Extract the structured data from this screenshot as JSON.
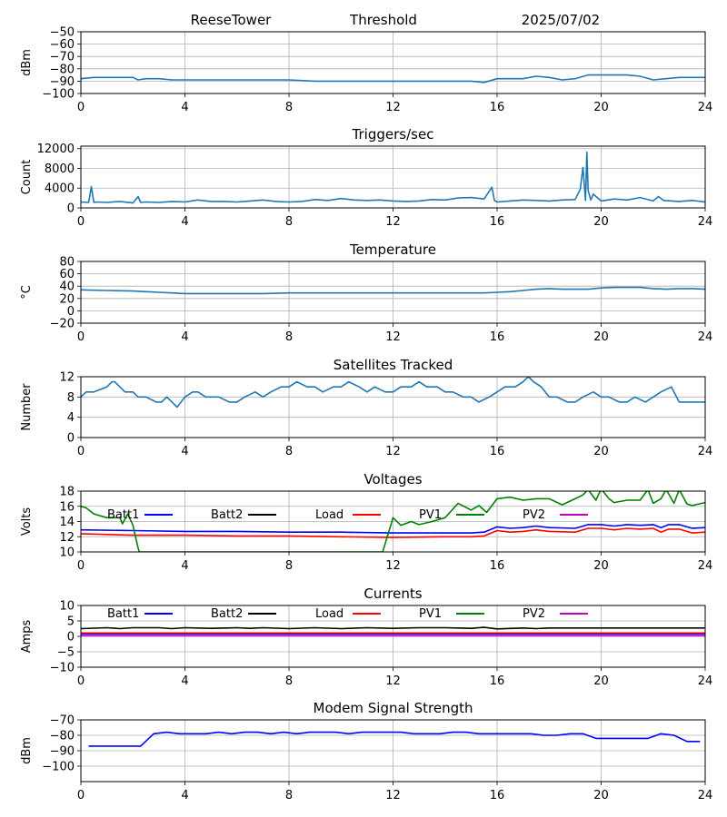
{
  "header": {
    "station": "ReeseTower",
    "mode": "Threshold",
    "date": "2025/07/02"
  },
  "chart_data": [
    {
      "type": "line",
      "title": "",
      "xlabel": "",
      "ylabel": "dBm",
      "xlim": [
        0,
        24
      ],
      "ylim": [
        -100,
        -50
      ],
      "xticks": [
        "0",
        "4",
        "8",
        "12",
        "16",
        "20",
        "24"
      ],
      "yticks": [
        "−100",
        "−90",
        "−80",
        "−70",
        "−60",
        "−50"
      ],
      "grid": true,
      "series": [
        {
          "color": "#1f77b4",
          "x": [
            0,
            0.5,
            1,
            1.5,
            2,
            2.2,
            2.5,
            3,
            3.5,
            4,
            5,
            6,
            7,
            8,
            9,
            10,
            11,
            12,
            13,
            14,
            15,
            15.5,
            16,
            17,
            17.5,
            18,
            18.5,
            19,
            19.5,
            20,
            21,
            21.5,
            22,
            23,
            24
          ],
          "y": [
            -88,
            -87,
            -87,
            -87,
            -87,
            -89,
            -88,
            -88,
            -89,
            -89,
            -89,
            -89,
            -89,
            -89,
            -90,
            -90,
            -90,
            -90,
            -90,
            -90,
            -90,
            -91,
            -88,
            -88,
            -86,
            -87,
            -89,
            -88,
            -85,
            -85,
            -85,
            -86,
            -89,
            -87,
            -87
          ]
        }
      ]
    },
    {
      "type": "line",
      "title": "Triggers/sec",
      "xlabel": "",
      "ylabel": "Count",
      "xlim": [
        0,
        24
      ],
      "ylim": [
        0,
        12500
      ],
      "xticks": [
        "0",
        "4",
        "8",
        "12",
        "16",
        "20",
        "24"
      ],
      "yticks": [
        "0",
        "4000",
        "8000",
        "12000"
      ],
      "grid": true,
      "series": [
        {
          "color": "#1f77b4",
          "x": [
            0,
            0.3,
            0.4,
            0.5,
            0.6,
            1,
            1.5,
            2,
            2.2,
            2.3,
            2.5,
            3,
            3.5,
            4,
            4.5,
            5,
            5.5,
            6,
            6.5,
            7,
            7.5,
            8,
            8.5,
            9,
            9.5,
            10,
            10.5,
            11,
            11.5,
            12,
            12.5,
            13,
            13.5,
            14,
            14.5,
            15,
            15.5,
            15.8,
            15.9,
            16,
            16.5,
            17,
            17.5,
            18,
            18.5,
            19,
            19.2,
            19.3,
            19.4,
            19.45,
            19.5,
            19.6,
            19.7,
            20,
            20.5,
            21,
            21.5,
            22,
            22.2,
            22.4,
            23,
            23.5,
            24
          ],
          "y": [
            1200,
            1100,
            4300,
            1100,
            1200,
            1100,
            1300,
            1000,
            2300,
            1100,
            1200,
            1100,
            1300,
            1200,
            1600,
            1300,
            1300,
            1200,
            1400,
            1600,
            1300,
            1200,
            1300,
            1700,
            1500,
            1900,
            1600,
            1500,
            1600,
            1400,
            1300,
            1400,
            1700,
            1600,
            2000,
            2100,
            1800,
            4200,
            1500,
            1200,
            1400,
            1600,
            1500,
            1400,
            1600,
            1700,
            3800,
            8200,
            1500,
            11300,
            3500,
            1600,
            2800,
            1400,
            1800,
            1600,
            2100,
            1400,
            2300,
            1500,
            1300,
            1500,
            1200
          ]
        }
      ]
    },
    {
      "type": "line",
      "title": "Temperature",
      "xlabel": "",
      "ylabel": "°C",
      "xlim": [
        0,
        24
      ],
      "ylim": [
        -20,
        80
      ],
      "xticks": [
        "0",
        "4",
        "8",
        "12",
        "16",
        "20",
        "24"
      ],
      "yticks": [
        "−20",
        "0",
        "20",
        "40",
        "60",
        "80"
      ],
      "grid": true,
      "series": [
        {
          "color": "#1f77b4",
          "x": [
            0,
            1,
            2,
            2.5,
            3,
            3.5,
            4,
            5,
            6,
            7,
            8,
            8.5,
            9,
            10,
            11,
            12,
            13,
            14,
            15,
            15.5,
            16,
            16.5,
            17,
            17.5,
            18,
            18.5,
            19,
            19.5,
            20,
            20.5,
            21,
            21.5,
            22,
            22.5,
            23,
            23.5,
            24
          ],
          "y": [
            34,
            33,
            32,
            31,
            30,
            29,
            28,
            28,
            28,
            28,
            29,
            29,
            29,
            29,
            29,
            29,
            29,
            29,
            29,
            29,
            30,
            31,
            33,
            35,
            36,
            35,
            35,
            35,
            37,
            38,
            38,
            38,
            36,
            35,
            36,
            36,
            35
          ]
        }
      ]
    },
    {
      "type": "line",
      "title": "Satellites Tracked",
      "xlabel": "",
      "ylabel": "Number",
      "xlim": [
        0,
        24
      ],
      "ylim": [
        0,
        12
      ],
      "xticks": [
        "0",
        "4",
        "8",
        "12",
        "16",
        "20",
        "24"
      ],
      "yticks": [
        "0",
        "4",
        "8",
        "12"
      ],
      "grid": true,
      "series": [
        {
          "color": "#1f77b4",
          "x": [
            0,
            0.2,
            0.5,
            1,
            1.2,
            1.3,
            1.5,
            1.7,
            2,
            2.2,
            2.5,
            2.9,
            3.1,
            3.3,
            3.5,
            3.7,
            4,
            4.3,
            4.5,
            4.8,
            5,
            5.3,
            5.7,
            6,
            6.3,
            6.7,
            7,
            7.3,
            7.7,
            8,
            8.3,
            8.7,
            9,
            9.3,
            9.7,
            10,
            10.3,
            10.7,
            11,
            11.3,
            11.7,
            12,
            12.3,
            12.7,
            13,
            13.3,
            13.7,
            14,
            14.3,
            14.7,
            15,
            15.3,
            15.7,
            16,
            16.3,
            16.7,
            17,
            17.2,
            17.4,
            17.7,
            18,
            18.3,
            18.7,
            19,
            19.3,
            19.7,
            20,
            20.3,
            20.7,
            21,
            21.3,
            21.7,
            22,
            22.3,
            22.7,
            23,
            23.3,
            23.7,
            24
          ],
          "y": [
            8,
            9,
            9,
            10,
            11,
            11,
            10,
            9,
            9,
            8,
            8,
            7,
            7,
            8,
            7,
            6,
            8,
            9,
            9,
            8,
            8,
            8,
            7,
            7,
            8,
            9,
            8,
            9,
            10,
            10,
            11,
            10,
            10,
            9,
            10,
            10,
            11,
            10,
            9,
            10,
            9,
            9,
            10,
            10,
            11,
            10,
            10,
            9,
            9,
            8,
            8,
            7,
            8,
            9,
            10,
            10,
            11,
            12,
            11,
            10,
            8,
            8,
            7,
            7,
            8,
            9,
            8,
            8,
            7,
            7,
            8,
            7,
            8,
            9,
            10,
            7,
            7,
            7,
            7
          ]
        }
      ]
    },
    {
      "type": "line",
      "title": "Voltages",
      "xlabel": "",
      "ylabel": "Volts",
      "xlim": [
        0,
        24
      ],
      "ylim": [
        10,
        18
      ],
      "xticks": [
        "0",
        "4",
        "8",
        "12",
        "16",
        "20",
        "24"
      ],
      "yticks": [
        "10",
        "12",
        "14",
        "16",
        "18"
      ],
      "grid": true,
      "legend": "top, single row",
      "series": [
        {
          "name": "Batt1",
          "color": "#0000ff",
          "x": [
            0,
            2,
            4,
            6,
            8,
            10,
            12,
            14,
            15,
            15.5,
            16,
            16.5,
            17,
            17.5,
            18,
            19,
            19.5,
            20,
            20.5,
            21,
            21.5,
            22,
            22.3,
            22.6,
            23,
            23.5,
            24
          ],
          "y": [
            12.9,
            12.8,
            12.7,
            12.7,
            12.6,
            12.6,
            12.5,
            12.5,
            12.5,
            12.6,
            13.3,
            13.1,
            13.2,
            13.4,
            13.2,
            13.1,
            13.6,
            13.6,
            13.4,
            13.6,
            13.5,
            13.6,
            13.2,
            13.6,
            13.6,
            13.1,
            13.2
          ]
        },
        {
          "name": "Batt2",
          "color": "#000000",
          "x": [],
          "y": []
        },
        {
          "name": "Load",
          "color": "#ff0000",
          "x": [
            0,
            2,
            4,
            6,
            8,
            10,
            12,
            14,
            15,
            15.5,
            16,
            16.5,
            17,
            17.5,
            18,
            19,
            19.5,
            20,
            20.5,
            21,
            21.5,
            22,
            22.3,
            22.6,
            23,
            23.5,
            24
          ],
          "y": [
            12.4,
            12.2,
            12.2,
            12.1,
            12.1,
            12.0,
            11.9,
            12.0,
            12.0,
            12.1,
            12.8,
            12.6,
            12.7,
            12.9,
            12.7,
            12.6,
            13.1,
            13.1,
            12.9,
            13.1,
            13.0,
            13.1,
            12.6,
            13.0,
            13.0,
            12.5,
            12.6
          ]
        },
        {
          "name": "PV1",
          "color": "#008000",
          "x": [
            0,
            0.2,
            0.5,
            1,
            1.5,
            1.6,
            1.8,
            2,
            2.2,
            2.25,
            11.6,
            12,
            12.3,
            12.7,
            13,
            13.5,
            14,
            14.5,
            15,
            15.3,
            15.6,
            16,
            16.5,
            17,
            17.5,
            18,
            18.5,
            19,
            19.3,
            19.5,
            19.8,
            20,
            20.3,
            20.5,
            21,
            21.5,
            21.8,
            22,
            22.3,
            22.5,
            22.8,
            23,
            23.3,
            23.5,
            24
          ],
          "y": [
            16,
            15.8,
            15,
            14.5,
            14.5,
            13.7,
            15,
            13.5,
            10.5,
            10,
            10,
            14.5,
            13.5,
            14,
            13.6,
            14,
            14.5,
            16.4,
            15.5,
            16.1,
            15.2,
            17,
            17.2,
            16.8,
            17,
            17,
            16.2,
            17,
            17.5,
            18.2,
            16.8,
            18.3,
            17,
            16.5,
            16.8,
            16.8,
            18.2,
            16.4,
            17,
            18.2,
            16.4,
            18.2,
            16.3,
            16.1,
            16.5
          ]
        },
        {
          "name": "PV2",
          "color": "#bf00bf",
          "x": [],
          "y": []
        }
      ]
    },
    {
      "type": "line",
      "title": "Currents",
      "xlabel": "",
      "ylabel": "Amps",
      "xlim": [
        0,
        24
      ],
      "ylim": [
        -10,
        10
      ],
      "xticks": [
        "0",
        "4",
        "8",
        "12",
        "16",
        "20",
        "24"
      ],
      "yticks": [
        "−10",
        "−5",
        "0",
        "5",
        "10"
      ],
      "grid": true,
      "legend": "top, single row",
      "series": [
        {
          "name": "Batt1",
          "color": "#0000ff",
          "x": [
            0,
            24
          ],
          "y": [
            0.8,
            0.8
          ]
        },
        {
          "name": "Batt2",
          "color": "#000000",
          "x": [
            0,
            1,
            1.5,
            2,
            3,
            3.5,
            4,
            5,
            6,
            6.5,
            7,
            8,
            9,
            10,
            11,
            12,
            13,
            14,
            15,
            15.5,
            16,
            17,
            17.5,
            18,
            20,
            22,
            24
          ],
          "y": [
            2.5,
            2.8,
            2.5,
            2.8,
            2.8,
            2.5,
            2.8,
            2.6,
            2.8,
            2.6,
            2.8,
            2.5,
            2.8,
            2.5,
            2.8,
            2.6,
            2.8,
            2.8,
            2.6,
            2.9,
            2.4,
            2.7,
            2.5,
            2.7,
            2.7,
            2.7,
            2.7
          ]
        },
        {
          "name": "Load",
          "color": "#ff0000",
          "x": [
            0,
            24
          ],
          "y": [
            1.1,
            1.1
          ]
        },
        {
          "name": "PV1",
          "color": "#008000",
          "x": [],
          "y": []
        },
        {
          "name": "PV2",
          "color": "#bf00bf",
          "x": [
            0,
            24
          ],
          "y": [
            0.2,
            0.2
          ]
        }
      ]
    },
    {
      "type": "line",
      "title": "Modem Signal Strength",
      "xlabel": "",
      "ylabel": "dBm",
      "xlim": [
        0,
        24
      ],
      "ylim": [
        -110,
        -70
      ],
      "xticks": [
        "0",
        "4",
        "8",
        "12",
        "16",
        "20",
        "24"
      ],
      "yticks": [
        "−100",
        "−90",
        "−80",
        "−70"
      ],
      "grid": true,
      "series": [
        {
          "color": "#0000ff",
          "x": [
            0.3,
            0.8,
            1.3,
            1.8,
            2.3,
            2.8,
            3.3,
            3.8,
            4.3,
            4.8,
            5.3,
            5.8,
            6.3,
            6.8,
            7.3,
            7.8,
            8.3,
            8.8,
            9.3,
            9.8,
            10.3,
            10.8,
            11.3,
            11.8,
            12.3,
            12.8,
            13.3,
            13.8,
            14.3,
            14.8,
            15.3,
            15.8,
            16.3,
            16.8,
            17.3,
            17.8,
            18.3,
            18.8,
            19.3,
            19.8,
            20.3,
            20.8,
            21.3,
            21.8,
            22.3,
            22.8,
            23.3,
            23.8
          ],
          "y": [
            -87,
            -87,
            -87,
            -87,
            -87,
            -79,
            -78,
            -79,
            -79,
            -79,
            -78,
            -79,
            -78,
            -78,
            -79,
            -78,
            -79,
            -78,
            -78,
            -78,
            -79,
            -78,
            -78,
            -78,
            -78,
            -79,
            -79,
            -79,
            -78,
            -78,
            -79,
            -79,
            -79,
            -79,
            -79,
            -80,
            -80,
            -79,
            -79,
            -82,
            -82,
            -82,
            -82,
            -82,
            -79,
            -80,
            -84,
            -84
          ]
        }
      ]
    }
  ]
}
